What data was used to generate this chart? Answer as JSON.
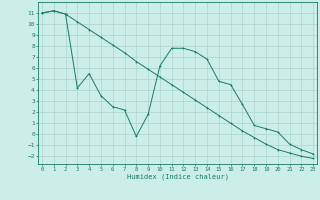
{
  "xlabel": "Humidex (Indice chaleur)",
  "bg_color": "#cceee8",
  "grid_color": "#aad4cc",
  "line_color": "#1a7a6a",
  "line1_x": [
    0,
    1,
    2,
    3,
    4,
    5,
    6,
    7,
    8,
    9,
    10,
    11,
    12,
    13,
    14,
    15,
    16,
    17,
    18,
    19,
    20,
    21,
    22,
    23
  ],
  "line1_y": [
    11.0,
    11.2,
    10.9,
    10.2,
    9.5,
    8.8,
    8.1,
    7.4,
    6.6,
    5.9,
    5.2,
    4.5,
    3.8,
    3.1,
    2.4,
    1.7,
    1.0,
    0.3,
    -0.3,
    -0.9,
    -1.4,
    -1.7,
    -2.0,
    -2.2
  ],
  "line2_x": [
    0,
    1,
    2,
    3,
    4,
    5,
    6,
    7,
    8,
    9,
    10,
    11,
    12,
    13,
    14,
    15,
    16,
    17,
    18,
    19,
    20,
    21,
    22,
    23
  ],
  "line2_y": [
    11.0,
    11.2,
    10.9,
    4.2,
    5.5,
    3.5,
    2.5,
    2.2,
    -0.2,
    1.8,
    6.2,
    7.8,
    7.8,
    7.5,
    6.8,
    4.8,
    4.5,
    2.7,
    0.8,
    0.5,
    0.2,
    -0.9,
    -1.4,
    -1.8
  ],
  "xlim": [
    -0.3,
    23.3
  ],
  "ylim": [
    -2.7,
    12.0
  ],
  "yticks": [
    -2,
    -1,
    0,
    1,
    2,
    3,
    4,
    5,
    6,
    7,
    8,
    9,
    10,
    11
  ],
  "xticks": [
    0,
    1,
    2,
    3,
    4,
    5,
    6,
    7,
    8,
    9,
    10,
    11,
    12,
    13,
    14,
    15,
    16,
    17,
    18,
    19,
    20,
    21,
    22,
    23
  ]
}
